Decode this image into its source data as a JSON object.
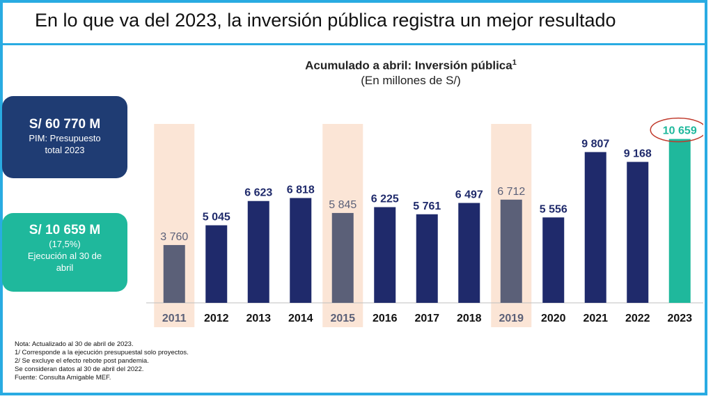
{
  "headline": "En lo que va del 2023, la inversión pública registra un mejor resultado",
  "cards": {
    "budget": {
      "value": "S/ 60 770 M",
      "line1": "PIM: Presupuesto",
      "line2": "total 2023"
    },
    "execution": {
      "value": "S/ 10 659 M",
      "line1": "(17,5%)",
      "line2": "Ejecución al 30 de",
      "line3": "abril"
    }
  },
  "notes": [
    "Nota: Actualizado al 30 de abril de 2023.",
    "1/ Corresponde a la ejecución presupuestal solo proyectos.",
    "2/ Se excluye el efecto rebote post pandemia.",
    "Se consideran datos al 30 de abril del 2022.",
    "Fuente: Consulta Amigable MEF."
  ],
  "colors": {
    "navy": "#1f2a6b",
    "gray": "#5b6078",
    "teal": "#1fb89c",
    "highlight": "#fbe5d6",
    "circle": "#c0392b",
    "frame": "#29abe2"
  },
  "chart_data": {
    "type": "bar",
    "title": "Acumulado a abril: Inversión pública",
    "title_sup": "1",
    "subtitle": "(En millones de S/)",
    "categories": [
      "2011",
      "2012",
      "2013",
      "2014",
      "2015",
      "2016",
      "2017",
      "2018",
      "2019",
      "2020",
      "2021",
      "2022",
      "2023"
    ],
    "values": [
      3760,
      5045,
      6623,
      6818,
      5845,
      6225,
      5761,
      6497,
      6712,
      5556,
      9807,
      9168,
      10659
    ],
    "labels": [
      "3 760",
      "5 045",
      "6 623",
      "6 818",
      "5 845",
      "6 225",
      "5 761",
      "6 497",
      "6 712",
      "5 556",
      "9 807",
      "9 168",
      "10 659"
    ],
    "highlighted_years": [
      "2011",
      "2015",
      "2019"
    ],
    "emphasized_year": "2023",
    "ylim": [
      0,
      12000
    ],
    "grid": false,
    "xlabel": "",
    "ylabel": ""
  }
}
